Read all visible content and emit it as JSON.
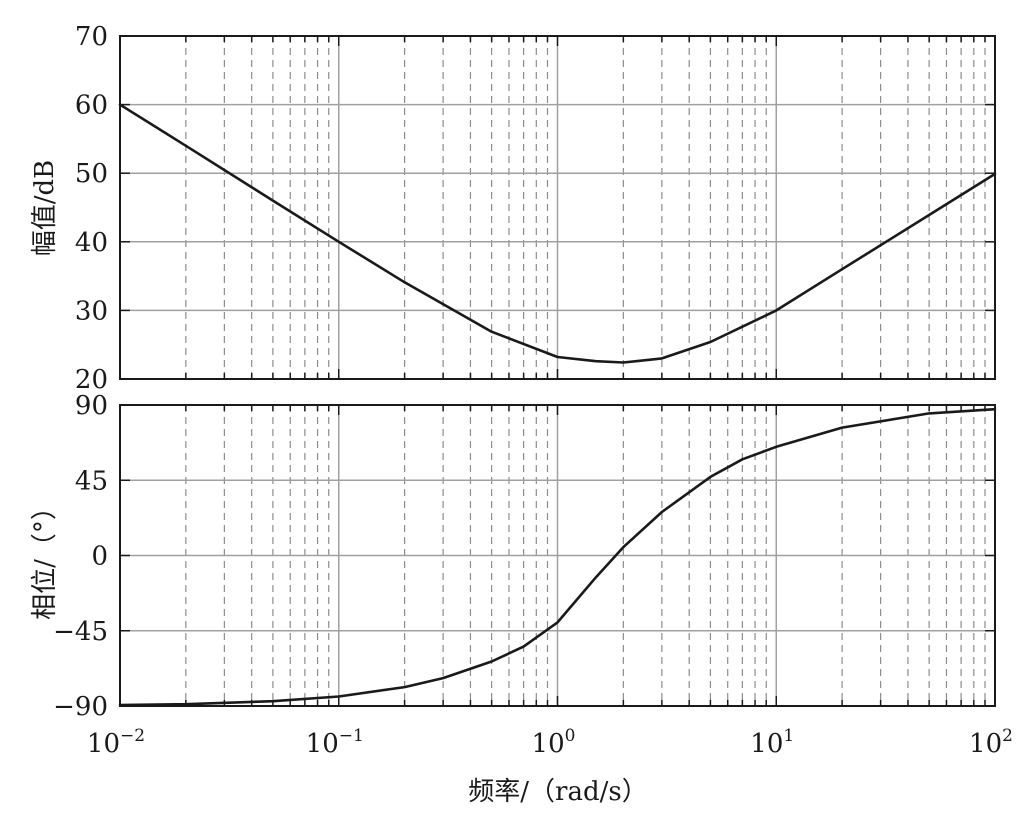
{
  "chart_data": [
    {
      "type": "line",
      "panel": "magnitude",
      "ylabel": "幅值/dB",
      "xlabel": "",
      "xscale": "log",
      "xlim": [
        0.01,
        100
      ],
      "ylim": [
        20,
        70
      ],
      "yticks": [
        20,
        30,
        40,
        50,
        60,
        70
      ],
      "ytick_labels": [
        "20",
        "30",
        "40",
        "50",
        "60",
        "70"
      ],
      "grid": true,
      "series": [
        {
          "color": "#1a1a1a",
          "x": [
            0.01,
            0.02,
            0.05,
            0.1,
            0.2,
            0.5,
            1,
            1.5,
            2,
            3,
            5,
            10,
            20,
            50,
            100
          ],
          "y": [
            60.0,
            54.0,
            46.0,
            40.0,
            34.1,
            26.9,
            23.2,
            22.6,
            22.4,
            23.0,
            25.4,
            30.0,
            36.0,
            43.9,
            49.9
          ]
        }
      ]
    },
    {
      "type": "line",
      "panel": "phase",
      "ylabel": "相位/（°）",
      "xlabel": "频率/（rad/s）",
      "xscale": "log",
      "xlim": [
        0.01,
        100
      ],
      "ylim": [
        -90,
        90
      ],
      "yticks": [
        -90,
        -45,
        0,
        45,
        90
      ],
      "ytick_labels": [
        "−90",
        "−45",
        "0",
        "45",
        "90"
      ],
      "xticks": [
        0.01,
        0.1,
        1,
        10,
        100
      ],
      "xtick_labels": [
        {
          "base": "10",
          "exp": "−2"
        },
        {
          "base": "10",
          "exp": "−1"
        },
        {
          "base": "10",
          "exp": "0"
        },
        {
          "base": "10",
          "exp": "1"
        },
        {
          "base": "10",
          "exp": "2"
        }
      ],
      "grid": true,
      "series": [
        {
          "color": "#1a1a1a",
          "x": [
            0.01,
            0.02,
            0.05,
            0.1,
            0.2,
            0.3,
            0.5,
            0.7,
            1,
            1.5,
            2,
            3,
            5,
            7,
            10,
            20,
            50,
            100
          ],
          "y": [
            -89.4,
            -88.9,
            -87.1,
            -84.3,
            -78.7,
            -73.3,
            -63.4,
            -54.5,
            -40.0,
            -13.0,
            5.0,
            26.0,
            47.0,
            57.5,
            65.0,
            76.5,
            85.0,
            87.5
          ]
        }
      ]
    }
  ]
}
